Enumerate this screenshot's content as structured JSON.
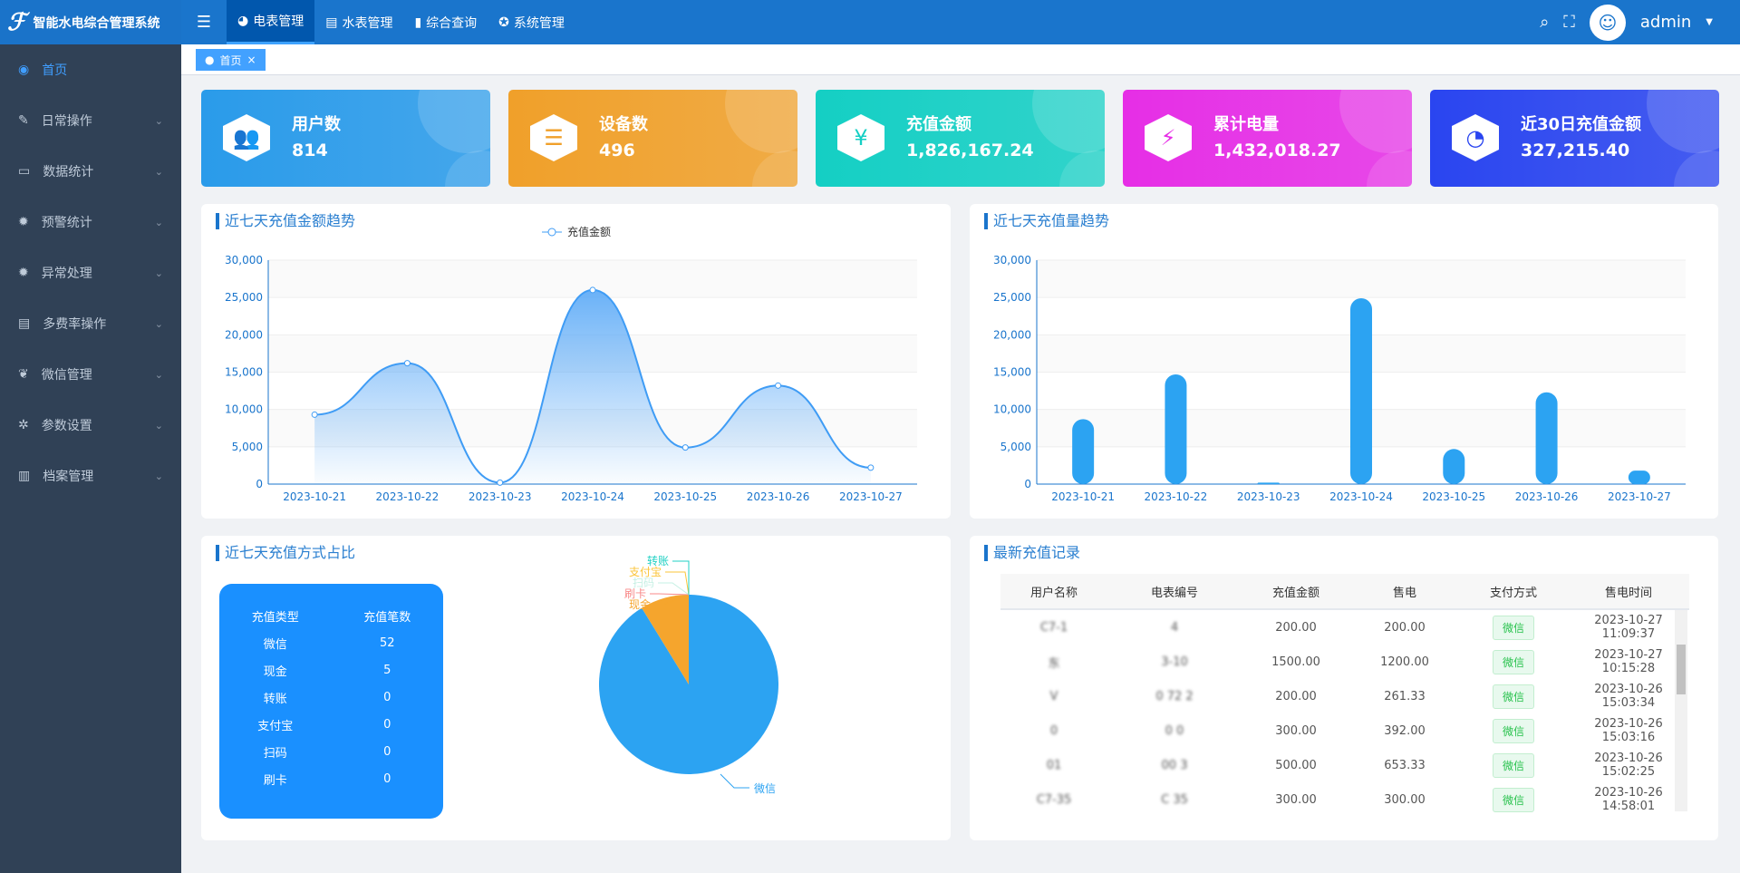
{
  "header": {
    "title": "智能水电综合管理系统",
    "nav": [
      {
        "label": "电表管理",
        "icon": "dashboard-icon",
        "active": true
      },
      {
        "label": "水表管理",
        "icon": "file-icon"
      },
      {
        "label": "综合查询",
        "icon": "bar-chart-icon"
      },
      {
        "label": "系统管理",
        "icon": "settings-icon"
      }
    ],
    "user": "admin"
  },
  "sidebar": {
    "items": [
      {
        "label": "首页",
        "icon": "globe-icon",
        "active": true
      },
      {
        "label": "日常操作",
        "icon": "edit-icon"
      },
      {
        "label": "数据统计",
        "icon": "card-icon"
      },
      {
        "label": "预警统计",
        "icon": "bug-icon"
      },
      {
        "label": "异常处理",
        "icon": "bug-icon"
      },
      {
        "label": "多费率操作",
        "icon": "doc-icon"
      },
      {
        "label": "微信管理",
        "icon": "wechat-icon"
      },
      {
        "label": "参数设置",
        "icon": "gear-icon"
      },
      {
        "label": "档案管理",
        "icon": "book-icon"
      }
    ]
  },
  "tabs": [
    {
      "label": "首页",
      "close": "×"
    }
  ],
  "cards": [
    {
      "title": "用户数",
      "value": "814",
      "color": "#2a9bea",
      "icon": "users-icon"
    },
    {
      "title": "设备数",
      "value": "496",
      "color": "#f0a02a",
      "icon": "device-list-icon"
    },
    {
      "title": "充值金额",
      "value": "1,826,167.24",
      "color": "#14cfc4",
      "icon": "yuan-icon"
    },
    {
      "title": "累计电量",
      "value": "1,432,018.27",
      "color": "#e62ee6",
      "icon": "power-icon"
    },
    {
      "title": "近30日充值金额",
      "value": "327,215.40",
      "color": "#2a45f0",
      "icon": "pie-icon"
    }
  ],
  "panels": {
    "line_title": "近七天充值金额趋势",
    "bar_title": "近七天充值量趋势",
    "pie_title": "近七天充值方式占比",
    "records_title": "最新充值记录"
  },
  "chart_data": [
    {
      "type": "line",
      "smooth": true,
      "area": true,
      "legend": "充值金额",
      "legend_position": "top",
      "categories": [
        "2023-10-21",
        "2023-10-22",
        "2023-10-23",
        "2023-10-24",
        "2023-10-25",
        "2023-10-26",
        "2023-10-27"
      ],
      "values": [
        9300,
        16200,
        200,
        26000,
        4900,
        13200,
        2200
      ],
      "ylim": [
        0,
        30000
      ],
      "yticks": [
        "0",
        "5,000",
        "10,000",
        "15,000",
        "20,000",
        "25,000",
        "30,000"
      ],
      "color": "#3f9cf5"
    },
    {
      "type": "bar",
      "categories": [
        "2023-10-21",
        "2023-10-22",
        "2023-10-23",
        "2023-10-24",
        "2023-10-25",
        "2023-10-26",
        "2023-10-27"
      ],
      "values": [
        8700,
        14700,
        200,
        24900,
        4700,
        12300,
        1800
      ],
      "ylim": [
        0,
        30000
      ],
      "yticks": [
        "0",
        "5,000",
        "10,000",
        "15,000",
        "20,000",
        "25,000",
        "30,000"
      ],
      "color": "#2ca3f2"
    },
    {
      "type": "pie",
      "table_headers": [
        "充值类型",
        "充值笔数"
      ],
      "slices": [
        {
          "name": "微信",
          "value": 52,
          "color": "#2ca3f2"
        },
        {
          "name": "现金",
          "value": 5,
          "color": "#f5a52d"
        },
        {
          "name": "转账",
          "value": 0,
          "color": "#22d1c4"
        },
        {
          "name": "支付宝",
          "value": 0,
          "color": "#fbc53a"
        },
        {
          "name": "扫码",
          "value": 0,
          "color": "#c6f0e4"
        },
        {
          "name": "刷卡",
          "value": 0,
          "color": "#f88a8a"
        }
      ]
    }
  ],
  "records": {
    "headers": [
      "用户名称",
      "电表编号",
      "充值金额",
      "售电",
      "支付方式",
      "售电时间"
    ],
    "rows": [
      [
        "C7-1",
        "4",
        "200.00",
        "200.00",
        "微信",
        "2023-10-27 11:09:37"
      ],
      [
        "东",
        "3-10",
        "1500.00",
        "1200.00",
        "微信",
        "2023-10-27 10:15:28"
      ],
      [
        "V",
        "0  72 2",
        "200.00",
        "261.33",
        "微信",
        "2023-10-26 15:03:34"
      ],
      [
        "0",
        "0  0",
        "300.00",
        "392.00",
        "微信",
        "2023-10-26 15:03:16"
      ],
      [
        "01",
        "00  3",
        "500.00",
        "653.33",
        "微信",
        "2023-10-26 15:02:25"
      ],
      [
        "C7-35",
        "C 35",
        "300.00",
        "300.00",
        "微信",
        "2023-10-26 14:58:01"
      ]
    ]
  }
}
